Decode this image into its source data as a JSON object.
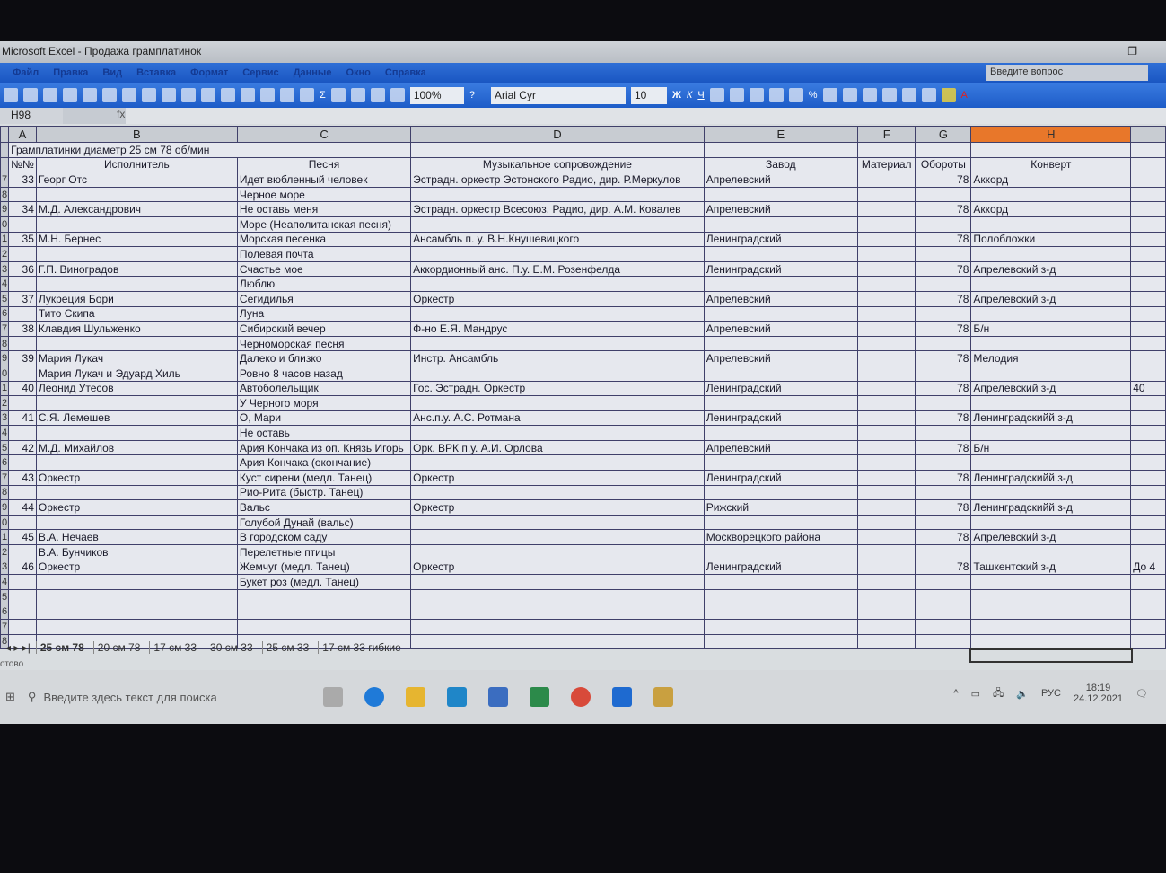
{
  "window": {
    "title": "Microsoft Excel - Продажа грамплатинок"
  },
  "menu": [
    "Файл",
    "Правка",
    "Вид",
    "Вставка",
    "Формат",
    "Сервис",
    "Данные",
    "Окно",
    "Справка"
  ],
  "ask_placeholder": "Введите вопрос",
  "toolbar": {
    "zoom": "100%",
    "font": "Arial Cyr",
    "size": "10",
    "bold": "Ж",
    "italic": "К",
    "underline": "Ч"
  },
  "formula": {
    "namebox": "H98",
    "fx": "fx",
    "value": ""
  },
  "columns": [
    "A",
    "B",
    "C",
    "D",
    "E",
    "F",
    "G",
    "H",
    ""
  ],
  "selected_column": "H",
  "sheet_title": "Грамплатинки диаметр 25 см 78 об/мин",
  "headers": [
    "№№",
    "Исполнитель",
    "Песня",
    "Музыкальное сопровождение",
    "Завод",
    "Материал",
    "Обороты",
    "Конверт",
    ""
  ],
  "row_labels": [
    "",
    "",
    "7",
    "8",
    "9",
    "0",
    "1",
    "2",
    "3",
    "4",
    "5",
    "6",
    "7",
    "8",
    "9",
    "0",
    "1",
    "2",
    "3",
    "4",
    "5",
    "6",
    "7",
    "8",
    "9",
    "0",
    "1",
    "2",
    "3",
    "4",
    "5",
    "6",
    "7",
    "8"
  ],
  "rows": [
    [
      "33",
      "Георг Отс",
      "Идет вюбленный человек",
      "Эстрадн. оркестр Эстонского Радио, дир. Р.Меркулов",
      "Апрелевский",
      "",
      "78",
      "Аккорд",
      ""
    ],
    [
      "",
      "",
      "Черное море",
      "",
      "",
      "",
      "",
      "",
      ""
    ],
    [
      "34",
      "М.Д. Александрович",
      "Не оставь меня",
      "Эстрадн. оркестр Всесоюз. Радио, дир. А.М. Ковалев",
      "Апрелевский",
      "",
      "78",
      "Аккорд",
      ""
    ],
    [
      "",
      "",
      "Море (Неаполитанская песня)",
      "",
      "",
      "",
      "",
      "",
      ""
    ],
    [
      "35",
      "М.Н. Бернес",
      "Морская песенка",
      "Ансамбль п. у. В.Н.Кнушевицкого",
      "Ленинградский",
      "",
      "78",
      "Полобложки",
      ""
    ],
    [
      "",
      "",
      "Полевая почта",
      "",
      "",
      "",
      "",
      "",
      ""
    ],
    [
      "36",
      "Г.П. Виноградов",
      "Счастье мое",
      "Аккордионный анс. П.у. Е.М. Розенфелда",
      "Ленинградский",
      "",
      "78",
      "Апрелевский з-д",
      ""
    ],
    [
      "",
      "",
      "Люблю",
      "",
      "",
      "",
      "",
      "",
      ""
    ],
    [
      "37",
      "Лукреция Бори",
      "Сегидилья",
      "Оркестр",
      "Апрелевский",
      "",
      "78",
      "Апрелевский з-д",
      ""
    ],
    [
      "",
      "Тито Скипа",
      "Луна",
      "",
      "",
      "",
      "",
      "",
      ""
    ],
    [
      "38",
      "Клавдия Шульженко",
      "Сибирский вечер",
      "Ф-но Е.Я. Мандрус",
      "Апрелевский",
      "",
      "78",
      "Б/н",
      ""
    ],
    [
      "",
      "",
      "Черноморская песня",
      "",
      "",
      "",
      "",
      "",
      ""
    ],
    [
      "39",
      "Мария Лукач",
      "Далеко и близко",
      "Инстр. Ансамбль",
      "Апрелевский",
      "",
      "78",
      "Мелодия",
      ""
    ],
    [
      "",
      "Мария Лукач и Эдуард Хиль",
      "Ровно 8 часов назад",
      "",
      "",
      "",
      "",
      "",
      ""
    ],
    [
      "40",
      "Леонид Утесов",
      "Автоболельщик",
      "Гос. Эстрадн. Оркестр",
      "Ленинградский",
      "",
      "78",
      "Апрелевский з-д",
      "40"
    ],
    [
      "",
      "",
      "У Черного моря",
      "",
      "",
      "",
      "",
      "",
      ""
    ],
    [
      "41",
      "С.Я. Лемешев",
      "О, Мари",
      "Анс.п.у. А.С. Ротмана",
      "Ленинградский",
      "",
      "78",
      "Ленинградскийй з-д",
      ""
    ],
    [
      "",
      "",
      "Не оставь",
      "",
      "",
      "",
      "",
      "",
      ""
    ],
    [
      "42",
      "М.Д. Михайлов",
      "Ария Кончака из оп. Князь Игорь",
      "Орк. ВРК п.у. А.И. Орлова",
      "Апрелевский",
      "",
      "78",
      "Б/н",
      ""
    ],
    [
      "",
      "",
      "Ария Кончака (окончание)",
      "",
      "",
      "",
      "",
      "",
      ""
    ],
    [
      "43",
      "Оркестр",
      "Куст сирени (медл. Танец)",
      "Оркестр",
      "Ленинградский",
      "",
      "78",
      "Ленинградскийй з-д",
      ""
    ],
    [
      "",
      "",
      "Рио-Рита (быстр. Танец)",
      "",
      "",
      "",
      "",
      "",
      ""
    ],
    [
      "44",
      "Оркестр",
      "Вальс",
      "Оркестр",
      "Рижский",
      "",
      "78",
      "Ленинградскийй з-д",
      ""
    ],
    [
      "",
      "",
      "Голубой Дунай (вальс)",
      "",
      "",
      "",
      "",
      "",
      ""
    ],
    [
      "45",
      "В.А. Нечаев",
      "В городском саду",
      "",
      "Москворецкого района",
      "",
      "78",
      "Апрелевский з-д",
      ""
    ],
    [
      "",
      "В.А. Бунчиков",
      "Перелетные птицы",
      "",
      "",
      "",
      "",
      "",
      ""
    ],
    [
      "46",
      "Оркестр",
      "Жемчуг (медл. Танец)",
      "Оркестр",
      "Ленинградский",
      "",
      "78",
      "Ташкентский з-д",
      "До 4"
    ],
    [
      "",
      "",
      "Букет роз (медл. Танец)",
      "",
      "",
      "",
      "",
      "",
      ""
    ],
    [
      "",
      "",
      "",
      "",
      "",
      "",
      "",
      "",
      ""
    ],
    [
      "",
      "",
      "",
      "",
      "",
      "",
      "",
      "",
      ""
    ],
    [
      "",
      "",
      "",
      "",
      "",
      "",
      "",
      "",
      ""
    ],
    [
      "",
      "",
      "",
      "",
      "",
      "",
      "",
      "",
      ""
    ]
  ],
  "sheet_tabs": [
    "25 см 78",
    "20 см 78",
    "17 см 33",
    "30 см 33",
    "25 см 33",
    "17 см 33 гибкие"
  ],
  "active_tab": "25 см 78",
  "status": "отово",
  "taskbar": {
    "search_placeholder": "Введите здесь текст для поиска",
    "lang": "РУС",
    "time": "18:19",
    "date": "24.12.2021"
  }
}
